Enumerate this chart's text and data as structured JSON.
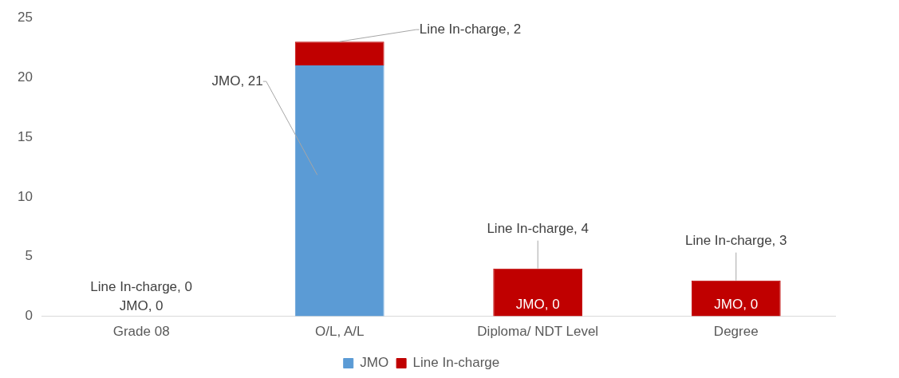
{
  "chart_data": {
    "type": "bar",
    "stacked": true,
    "categories": [
      "Grade 08",
      "O/L, A/L",
      "Diploma/ NDT Level",
      "Degree"
    ],
    "series": [
      {
        "name": "JMO",
        "color": "#5b9bd5",
        "values": [
          0,
          21,
          0,
          0
        ],
        "value_labels": [
          "JMO, 0",
          "JMO, 21",
          "JMO, 0",
          "JMO, 0"
        ]
      },
      {
        "name": "Line In-charge",
        "color": "#c00000",
        "values": [
          0,
          2,
          4,
          3
        ],
        "value_labels": [
          "Line In-charge, 0",
          "Line In-charge, 2",
          "Line In-charge, 4",
          "Line In-charge, 3"
        ]
      }
    ],
    "ylim": [
      0,
      25
    ],
    "yticks": [
      0,
      5,
      10,
      15,
      20,
      25
    ],
    "grid": false,
    "legend": "bottom"
  }
}
